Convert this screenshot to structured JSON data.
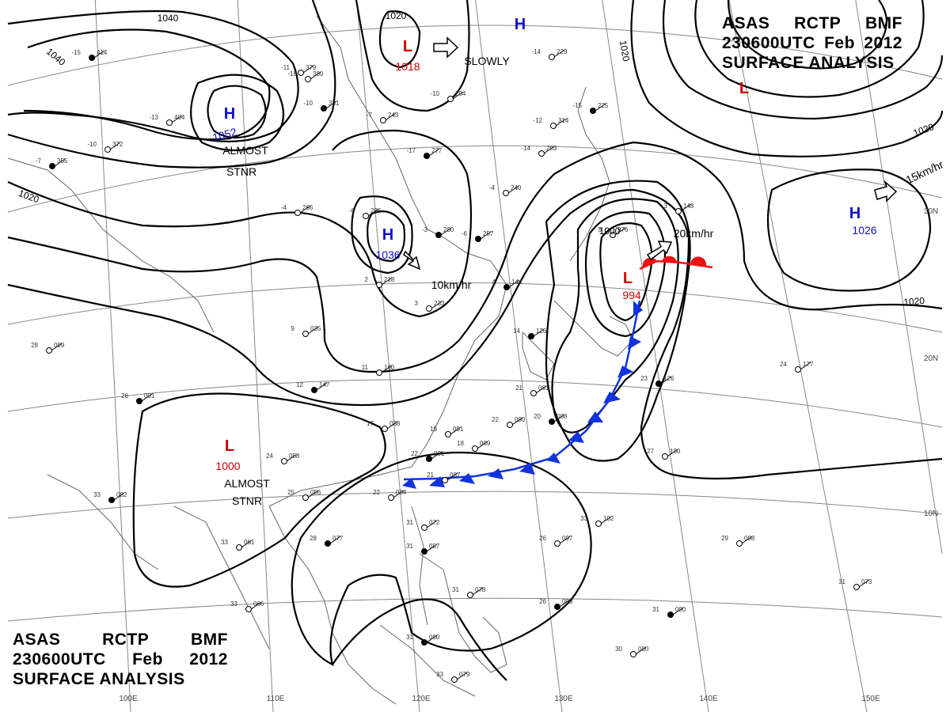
{
  "header": {
    "line1": [
      "ASAS",
      "RCTP",
      "BMF"
    ],
    "line2": [
      "230600UTC",
      "Feb",
      "2012"
    ],
    "line3": "SURFACE ANALYSIS"
  },
  "colors": {
    "high": "#1010cc",
    "low": "#cc0000",
    "isobar": "#000000",
    "front_warm": "#ee1111",
    "front_cold": "#1133dd",
    "grid": "#777777"
  },
  "isobar_labels": [
    "1040",
    "1040",
    "1020",
    "1020",
    "1020",
    "1020",
    "1020",
    "1000"
  ],
  "pressure_centers": [
    {
      "type": "H",
      "value": "1052",
      "note": "ALMOST STNR"
    },
    {
      "type": "H",
      "value": "1036",
      "note": "10km/hr"
    },
    {
      "type": "L",
      "value": "1018",
      "note": "SLOWLY"
    },
    {
      "type": "H",
      "value": ""
    },
    {
      "type": "L",
      "value": ""
    },
    {
      "type": "L",
      "value": "994",
      "note": "20km/hr"
    },
    {
      "type": "H",
      "value": "1026",
      "note": "15km/hr"
    },
    {
      "type": "L",
      "value": "1000",
      "note": "ALMOST STNR"
    }
  ],
  "longitude_labels": [
    "100E",
    "110E",
    "120E",
    "130E",
    "140E",
    "150E"
  ],
  "latitude_labels": [
    "30N",
    "20N",
    "10N"
  ],
  "stations": [
    {
      "t": "-15",
      "p": "414"
    },
    {
      "t": "-13",
      "p": "404"
    },
    {
      "t": "-11",
      "p": "379"
    },
    {
      "t": "-10",
      "p": "381"
    },
    {
      "t": "-16",
      "p": "380"
    },
    {
      "t": "-10",
      "p": "372"
    },
    {
      "t": "-7",
      "p": "355"
    },
    {
      "t": "-4",
      "p": "266"
    },
    {
      "t": "-6",
      "p": "296"
    },
    {
      "t": "-3",
      "p": "280"
    },
    {
      "t": "-7",
      "p": "243"
    },
    {
      "t": "-10",
      "p": "204"
    },
    {
      "t": "-17",
      "p": "277"
    },
    {
      "t": "-12",
      "p": "314"
    },
    {
      "t": "-14",
      "p": "203"
    },
    {
      "t": "-15",
      "p": "225"
    },
    {
      "t": "-14",
      "p": "229"
    },
    {
      "t": "-4",
      "p": "240"
    },
    {
      "t": "-6",
      "p": "257"
    },
    {
      "t": "2",
      "p": "218"
    },
    {
      "t": "3",
      "p": "233"
    },
    {
      "t": "4",
      "p": "144"
    },
    {
      "t": "9",
      "p": "035"
    },
    {
      "t": "11",
      "p": "160"
    },
    {
      "t": "12",
      "p": "147"
    },
    {
      "t": "17",
      "p": "088"
    },
    {
      "t": "19",
      "p": "091"
    },
    {
      "t": "22",
      "p": "091"
    },
    {
      "t": "21",
      "p": "087"
    },
    {
      "t": "22",
      "p": "084"
    },
    {
      "t": "26",
      "p": "001"
    },
    {
      "t": "24",
      "p": "058"
    },
    {
      "t": "25",
      "p": "056"
    },
    {
      "t": "28",
      "p": "077"
    },
    {
      "t": "33",
      "p": "061"
    },
    {
      "t": "33",
      "p": "066"
    },
    {
      "t": "33",
      "p": "082"
    },
    {
      "t": "28",
      "p": "099"
    },
    {
      "t": "31",
      "p": "072"
    },
    {
      "t": "31",
      "p": "057"
    },
    {
      "t": "31",
      "p": "078"
    },
    {
      "t": "33",
      "p": "079"
    },
    {
      "t": "31",
      "p": "080"
    },
    {
      "t": "30",
      "p": "080"
    },
    {
      "t": "26",
      "p": "097"
    },
    {
      "t": "26",
      "p": "098"
    },
    {
      "t": "33",
      "p": "102"
    },
    {
      "t": "29",
      "p": "098"
    },
    {
      "t": "31",
      "p": "090"
    },
    {
      "t": "31",
      "p": "073"
    },
    {
      "t": "27",
      "p": "130"
    },
    {
      "t": "23",
      "p": "126"
    },
    {
      "t": "24",
      "p": "177"
    },
    {
      "t": "22",
      "p": "090"
    },
    {
      "t": "20",
      "p": "088"
    },
    {
      "t": "21",
      "p": "061"
    },
    {
      "t": "18",
      "p": "089"
    },
    {
      "t": "14",
      "p": "126"
    },
    {
      "t": "5",
      "p": "976"
    },
    {
      "t": "3",
      "p": "148"
    }
  ]
}
